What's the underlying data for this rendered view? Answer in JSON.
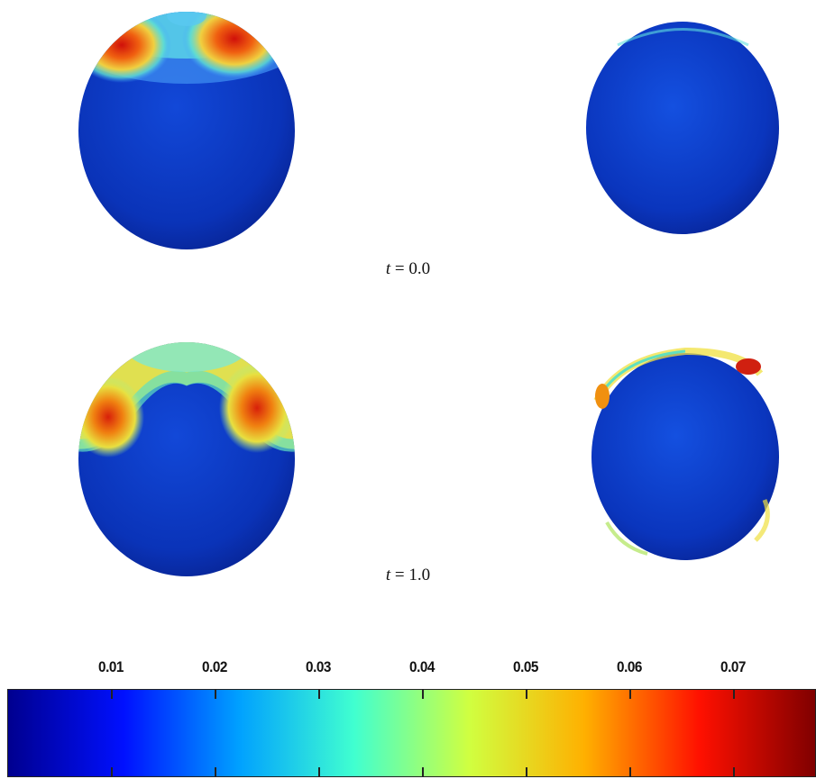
{
  "captions": {
    "row1": {
      "var": "t",
      "rest": " = 0.0"
    },
    "row2": {
      "var": "t",
      "rest": " = 1.0"
    }
  },
  "colorbar": {
    "ticks": [
      "0.01",
      "0.02",
      "0.03",
      "0.04",
      "0.05",
      "0.06",
      "0.07"
    ],
    "tick_values": [
      0.01,
      0.02,
      0.03,
      0.04,
      0.05,
      0.06,
      0.07
    ],
    "range": [
      0.0,
      0.078
    ],
    "colormap": "jet",
    "stops": [
      "#00008f",
      "#0010ff",
      "#00a0ff",
      "#40ffd0",
      "#d0ff40",
      "#ffb000",
      "#ff1000",
      "#800000"
    ]
  }
}
